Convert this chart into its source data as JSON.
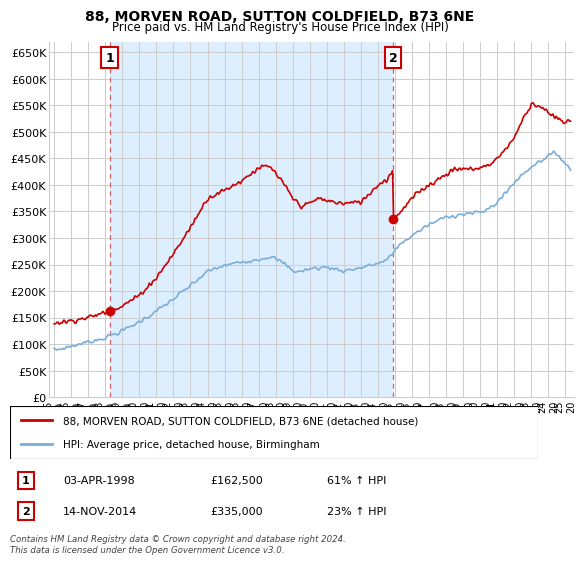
{
  "title": "88, MORVEN ROAD, SUTTON COLDFIELD, B73 6NE",
  "subtitle": "Price paid vs. HM Land Registry's House Price Index (HPI)",
  "ylabel_ticks": [
    "£0",
    "£50K",
    "£100K",
    "£150K",
    "£200K",
    "£250K",
    "£300K",
    "£350K",
    "£400K",
    "£450K",
    "£500K",
    "£550K",
    "£600K",
    "£650K"
  ],
  "ytick_values": [
    0,
    50000,
    100000,
    150000,
    200000,
    250000,
    300000,
    350000,
    400000,
    450000,
    500000,
    550000,
    600000,
    650000
  ],
  "ylim": [
    0,
    670000
  ],
  "sale1_date": 1998.25,
  "sale1_price": 162500,
  "sale2_date": 2014.88,
  "sale2_price": 335000,
  "line1_color": "#cc0000",
  "line2_color": "#7aadda",
  "vline_color": "#cc6666",
  "annotation_box_color": "#cc0000",
  "grid_color": "#cccccc",
  "background_color": "#ffffff",
  "shade_color": "#ddeeff",
  "legend_label1": "88, MORVEN ROAD, SUTTON COLDFIELD, B73 6NE (detached house)",
  "legend_label2": "HPI: Average price, detached house, Birmingham",
  "table_row1": [
    "1",
    "03-APR-1998",
    "£162,500",
    "61% ↑ HPI"
  ],
  "table_row2": [
    "2",
    "14-NOV-2014",
    "£335,000",
    "23% ↑ HPI"
  ],
  "footnote": "Contains HM Land Registry data © Crown copyright and database right 2024.\nThis data is licensed under the Open Government Licence v3.0.",
  "xmin": 1994.7,
  "xmax": 2025.5,
  "xtick_years": [
    1995,
    1996,
    1997,
    1998,
    1999,
    2000,
    2001,
    2002,
    2003,
    2004,
    2005,
    2006,
    2007,
    2008,
    2009,
    2010,
    2011,
    2012,
    2013,
    2014,
    2015,
    2016,
    2017,
    2018,
    2019,
    2020,
    2021,
    2022,
    2023,
    2024,
    2025
  ]
}
